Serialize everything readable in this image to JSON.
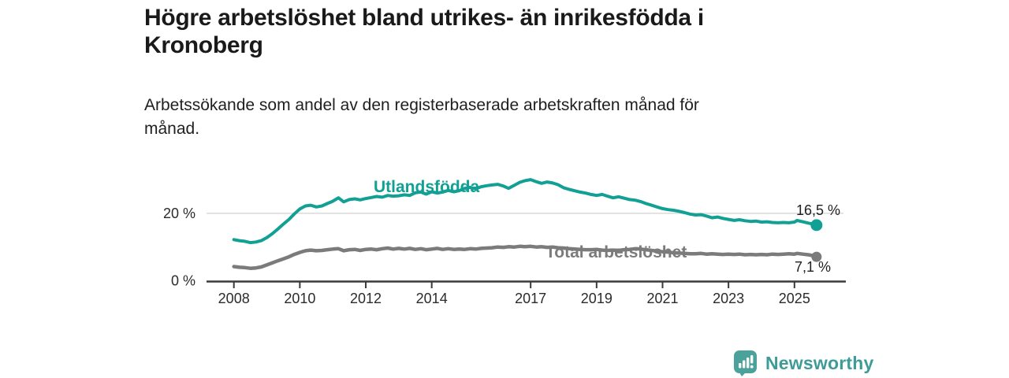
{
  "chart_data": {
    "type": "line",
    "title": "Högre arbetslöshet bland utrikes- än inrikesfödda i\nKronoberg",
    "subtitle": "Arbetssökande som andel av den registerbaserade arbetskraften månad för\nmånad.",
    "xlabel": "",
    "ylabel": "",
    "x_axis": {
      "ticks": [
        2008,
        2010,
        2012,
        2014,
        2017,
        2019,
        2021,
        2023,
        2025
      ],
      "range": [
        2008,
        2025.67
      ]
    },
    "y_axis": {
      "ticks": [
        {
          "value": 20,
          "label": "20 %"
        },
        {
          "value": 0,
          "label": "0 %"
        }
      ],
      "range": [
        0,
        32
      ],
      "gridlines": [
        20
      ]
    },
    "legend_position": "inline-labels",
    "grid": "horizontal-only",
    "series": [
      {
        "name": "Utlandsfödda",
        "color": "#12A095",
        "end_label": "16,5 %",
        "end_value": 16.5,
        "points": [
          [
            2008.0,
            12.2
          ],
          [
            2008.17,
            11.9
          ],
          [
            2008.33,
            11.7
          ],
          [
            2008.5,
            11.3
          ],
          [
            2008.67,
            11.5
          ],
          [
            2008.83,
            11.9
          ],
          [
            2009.0,
            12.8
          ],
          [
            2009.17,
            14.0
          ],
          [
            2009.33,
            15.3
          ],
          [
            2009.5,
            16.8
          ],
          [
            2009.67,
            18.2
          ],
          [
            2009.83,
            19.8
          ],
          [
            2010.0,
            21.3
          ],
          [
            2010.17,
            22.2
          ],
          [
            2010.33,
            22.4
          ],
          [
            2010.5,
            21.9
          ],
          [
            2010.67,
            22.2
          ],
          [
            2010.83,
            22.9
          ],
          [
            2011.0,
            23.6
          ],
          [
            2011.17,
            24.6
          ],
          [
            2011.33,
            23.4
          ],
          [
            2011.5,
            24.1
          ],
          [
            2011.67,
            24.3
          ],
          [
            2011.83,
            24.0
          ],
          [
            2012.0,
            24.4
          ],
          [
            2012.17,
            24.7
          ],
          [
            2012.33,
            25.0
          ],
          [
            2012.5,
            24.8
          ],
          [
            2012.67,
            25.3
          ],
          [
            2012.83,
            25.1
          ],
          [
            2013.0,
            25.2
          ],
          [
            2013.17,
            25.5
          ],
          [
            2013.33,
            25.3
          ],
          [
            2013.5,
            26.1
          ],
          [
            2013.67,
            26.3
          ],
          [
            2013.83,
            25.7
          ],
          [
            2014.0,
            26.4
          ],
          [
            2014.17,
            26.0
          ],
          [
            2014.33,
            26.3
          ],
          [
            2014.5,
            26.8
          ],
          [
            2014.67,
            26.4
          ],
          [
            2014.83,
            26.7
          ],
          [
            2015.0,
            27.4
          ],
          [
            2015.17,
            27.7
          ],
          [
            2015.33,
            27.3
          ],
          [
            2015.5,
            27.9
          ],
          [
            2015.67,
            28.2
          ],
          [
            2015.83,
            28.4
          ],
          [
            2016.0,
            28.6
          ],
          [
            2016.17,
            28.1
          ],
          [
            2016.33,
            27.4
          ],
          [
            2016.5,
            28.3
          ],
          [
            2016.67,
            29.2
          ],
          [
            2016.83,
            29.7
          ],
          [
            2017.0,
            30.0
          ],
          [
            2017.17,
            29.4
          ],
          [
            2017.33,
            28.9
          ],
          [
            2017.5,
            29.3
          ],
          [
            2017.67,
            29.0
          ],
          [
            2017.83,
            28.5
          ],
          [
            2018.0,
            27.6
          ],
          [
            2018.17,
            27.1
          ],
          [
            2018.33,
            26.7
          ],
          [
            2018.5,
            26.3
          ],
          [
            2018.67,
            26.0
          ],
          [
            2018.83,
            25.6
          ],
          [
            2019.0,
            25.3
          ],
          [
            2019.17,
            25.6
          ],
          [
            2019.33,
            25.1
          ],
          [
            2019.5,
            24.6
          ],
          [
            2019.67,
            24.9
          ],
          [
            2019.83,
            24.5
          ],
          [
            2020.0,
            24.1
          ],
          [
            2020.17,
            23.9
          ],
          [
            2020.33,
            23.5
          ],
          [
            2020.5,
            22.9
          ],
          [
            2020.67,
            22.4
          ],
          [
            2020.83,
            21.9
          ],
          [
            2021.0,
            21.4
          ],
          [
            2021.17,
            21.1
          ],
          [
            2021.33,
            20.9
          ],
          [
            2021.5,
            20.6
          ],
          [
            2021.67,
            20.2
          ],
          [
            2021.83,
            19.8
          ],
          [
            2022.0,
            19.5
          ],
          [
            2022.17,
            19.6
          ],
          [
            2022.33,
            19.2
          ],
          [
            2022.5,
            18.7
          ],
          [
            2022.67,
            18.9
          ],
          [
            2022.83,
            18.5
          ],
          [
            2023.0,
            18.2
          ],
          [
            2023.17,
            17.9
          ],
          [
            2023.33,
            18.1
          ],
          [
            2023.5,
            17.8
          ],
          [
            2023.67,
            17.6
          ],
          [
            2023.83,
            17.7
          ],
          [
            2024.0,
            17.4
          ],
          [
            2024.17,
            17.5
          ],
          [
            2024.33,
            17.3
          ],
          [
            2024.5,
            17.2
          ],
          [
            2024.67,
            17.3
          ],
          [
            2024.83,
            17.2
          ],
          [
            2025.0,
            17.4
          ],
          [
            2025.08,
            17.9
          ],
          [
            2025.25,
            17.5
          ],
          [
            2025.42,
            17.1
          ],
          [
            2025.58,
            16.8
          ],
          [
            2025.67,
            16.5
          ]
        ]
      },
      {
        "name": "Total arbetslöshet",
        "color": "#7B7B7B",
        "end_label": "7,1 %",
        "end_value": 7.1,
        "points": [
          [
            2008.0,
            4.2
          ],
          [
            2008.17,
            4.0
          ],
          [
            2008.33,
            3.9
          ],
          [
            2008.5,
            3.7
          ],
          [
            2008.67,
            3.8
          ],
          [
            2008.83,
            4.1
          ],
          [
            2009.0,
            4.7
          ],
          [
            2009.17,
            5.3
          ],
          [
            2009.33,
            5.9
          ],
          [
            2009.5,
            6.5
          ],
          [
            2009.67,
            7.1
          ],
          [
            2009.83,
            7.8
          ],
          [
            2010.0,
            8.4
          ],
          [
            2010.17,
            8.9
          ],
          [
            2010.33,
            9.1
          ],
          [
            2010.5,
            8.9
          ],
          [
            2010.67,
            9.0
          ],
          [
            2010.83,
            9.2
          ],
          [
            2011.0,
            9.4
          ],
          [
            2011.17,
            9.5
          ],
          [
            2011.33,
            8.9
          ],
          [
            2011.5,
            9.2
          ],
          [
            2011.67,
            9.3
          ],
          [
            2011.83,
            9.0
          ],
          [
            2012.0,
            9.3
          ],
          [
            2012.17,
            9.4
          ],
          [
            2012.33,
            9.2
          ],
          [
            2012.5,
            9.5
          ],
          [
            2012.67,
            9.7
          ],
          [
            2012.83,
            9.4
          ],
          [
            2013.0,
            9.6
          ],
          [
            2013.17,
            9.4
          ],
          [
            2013.33,
            9.6
          ],
          [
            2013.5,
            9.3
          ],
          [
            2013.67,
            9.5
          ],
          [
            2013.83,
            9.2
          ],
          [
            2014.0,
            9.4
          ],
          [
            2014.17,
            9.6
          ],
          [
            2014.33,
            9.3
          ],
          [
            2014.5,
            9.5
          ],
          [
            2014.67,
            9.3
          ],
          [
            2014.83,
            9.4
          ],
          [
            2015.0,
            9.3
          ],
          [
            2015.17,
            9.5
          ],
          [
            2015.33,
            9.4
          ],
          [
            2015.5,
            9.6
          ],
          [
            2015.67,
            9.7
          ],
          [
            2015.83,
            9.8
          ],
          [
            2016.0,
            10.0
          ],
          [
            2016.17,
            9.9
          ],
          [
            2016.33,
            10.1
          ],
          [
            2016.5,
            10.0
          ],
          [
            2016.67,
            10.2
          ],
          [
            2016.83,
            10.1
          ],
          [
            2017.0,
            10.2
          ],
          [
            2017.17,
            10.0
          ],
          [
            2017.33,
            10.1
          ],
          [
            2017.5,
            9.9
          ],
          [
            2017.67,
            10.0
          ],
          [
            2017.83,
            9.8
          ],
          [
            2018.0,
            9.7
          ],
          [
            2018.17,
            9.5
          ],
          [
            2018.33,
            9.4
          ],
          [
            2018.5,
            9.3
          ],
          [
            2018.67,
            9.2
          ],
          [
            2018.83,
            9.2
          ],
          [
            2019.0,
            9.3
          ],
          [
            2019.17,
            9.1
          ],
          [
            2019.33,
            9.0
          ],
          [
            2019.5,
            9.1
          ],
          [
            2019.67,
            9.0
          ],
          [
            2019.83,
            9.2
          ],
          [
            2020.0,
            9.3
          ],
          [
            2020.17,
            9.5
          ],
          [
            2020.33,
            9.4
          ],
          [
            2020.5,
            9.2
          ],
          [
            2020.67,
            9.0
          ],
          [
            2020.83,
            8.8
          ],
          [
            2021.0,
            8.6
          ],
          [
            2021.17,
            8.5
          ],
          [
            2021.33,
            8.3
          ],
          [
            2021.5,
            8.2
          ],
          [
            2021.67,
            8.1
          ],
          [
            2021.83,
            8.0
          ],
          [
            2022.0,
            8.0
          ],
          [
            2022.17,
            8.1
          ],
          [
            2022.33,
            7.9
          ],
          [
            2022.5,
            8.0
          ],
          [
            2022.67,
            7.9
          ],
          [
            2022.83,
            7.8
          ],
          [
            2023.0,
            7.9
          ],
          [
            2023.17,
            7.8
          ],
          [
            2023.33,
            7.9
          ],
          [
            2023.5,
            7.7
          ],
          [
            2023.67,
            7.8
          ],
          [
            2023.83,
            7.7
          ],
          [
            2024.0,
            7.8
          ],
          [
            2024.17,
            7.7
          ],
          [
            2024.33,
            7.9
          ],
          [
            2024.5,
            7.8
          ],
          [
            2024.67,
            7.9
          ],
          [
            2024.83,
            8.0
          ],
          [
            2025.0,
            7.9
          ],
          [
            2025.08,
            8.1
          ],
          [
            2025.25,
            7.9
          ],
          [
            2025.42,
            7.7
          ],
          [
            2025.58,
            7.4
          ],
          [
            2025.67,
            7.1
          ]
        ]
      }
    ],
    "colors": {
      "accent_teal": "#12A095",
      "series_gray": "#7B7B7B",
      "axis": "#3A3A3A",
      "gridline": "#DADADA",
      "tick_text": "#2B2B2B",
      "title_text": "#1A1A1A"
    }
  },
  "footer": {
    "logo_text": "Newsworthy",
    "logo_color": "#3D9C97",
    "logo_icon": "newsworthy-bar-chart-bubble-icon"
  }
}
